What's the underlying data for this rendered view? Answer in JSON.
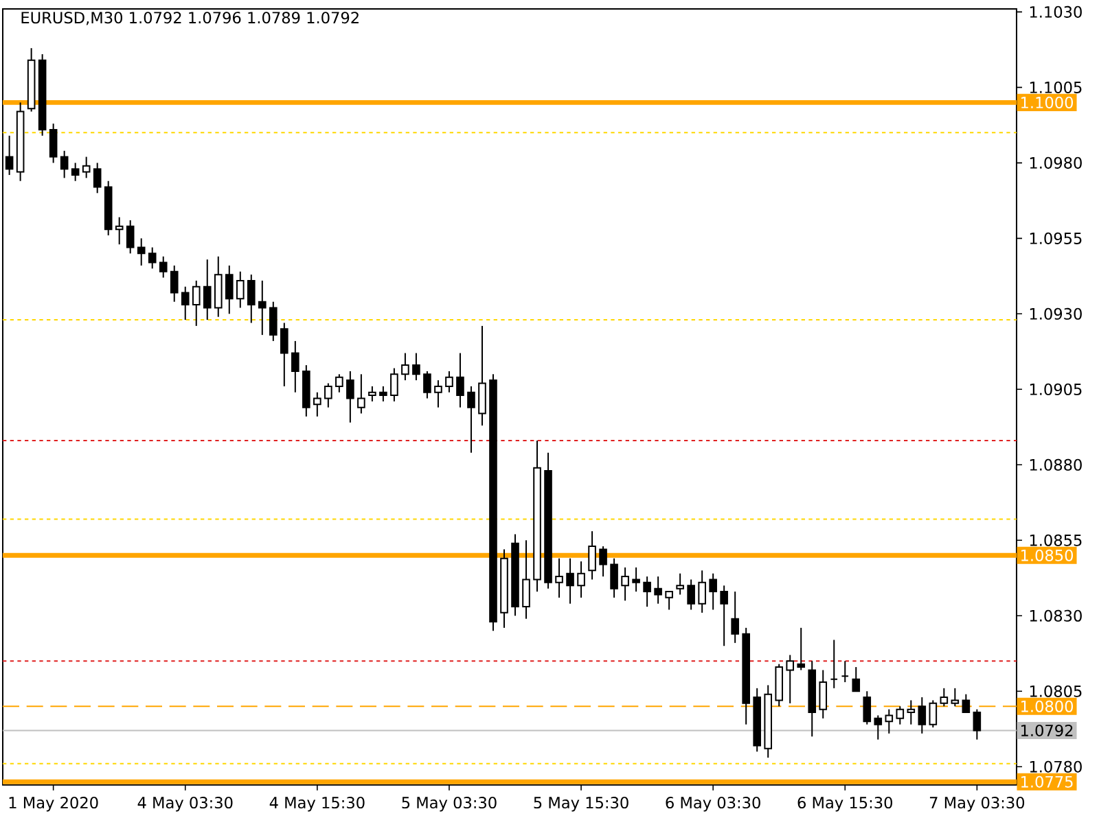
{
  "chart_data": {
    "type": "candlestick",
    "title": "EURUSD,M30  1.0792 1.0796 1.0789 1.0792",
    "categories": [
      null,
      null,
      null,
      null,
      "1 May 2020",
      null,
      null,
      null,
      null,
      null,
      null,
      null,
      null,
      null,
      null,
      null,
      "4 May 03:30",
      null,
      null,
      null,
      null,
      null,
      null,
      null,
      null,
      null,
      null,
      null,
      "4 May 15:30",
      null,
      null,
      null,
      null,
      null,
      null,
      null,
      null,
      null,
      null,
      null,
      "5 May 03:30",
      null,
      null,
      null,
      null,
      null,
      null,
      null,
      null,
      null,
      null,
      null,
      "5 May 15:30",
      null,
      null,
      null,
      null,
      null,
      null,
      null,
      null,
      null,
      null,
      null,
      "6 May 03:30",
      null,
      null,
      null,
      null,
      null,
      null,
      null,
      null,
      null,
      null,
      null,
      "6 May 15:30",
      null,
      null,
      null,
      null,
      null,
      null,
      null,
      null,
      null,
      null,
      null,
      "7 May 03:30"
    ],
    "ohlc": [
      [
        1.0982,
        1.0989,
        1.0976,
        1.0978
      ],
      [
        1.0977,
        1.1,
        1.0974,
        1.0997
      ],
      [
        1.0998,
        1.1018,
        1.0997,
        1.1014
      ],
      [
        1.1014,
        1.1016,
        1.0989,
        1.0991
      ],
      [
        1.0991,
        1.0993,
        1.098,
        1.0982
      ],
      [
        1.0982,
        1.0984,
        1.0975,
        1.0978
      ],
      [
        1.0978,
        1.098,
        1.0974,
        1.0976
      ],
      [
        1.0977,
        1.0982,
        1.0975,
        1.0979
      ],
      [
        1.0978,
        1.098,
        1.097,
        1.0972
      ],
      [
        1.0972,
        1.0974,
        1.0956,
        1.0958
      ],
      [
        1.0958,
        1.0962,
        1.0953,
        1.0959
      ],
      [
        1.0959,
        1.0961,
        1.095,
        1.0952
      ],
      [
        1.0952,
        1.0955,
        1.0946,
        1.095
      ],
      [
        1.095,
        1.0952,
        1.0945,
        1.0947
      ],
      [
        1.0947,
        1.0949,
        1.0942,
        1.0944
      ],
      [
        1.0944,
        1.0946,
        1.0934,
        1.0937
      ],
      [
        1.0937,
        1.0939,
        1.0928,
        1.0933
      ],
      [
        1.0933,
        1.0941,
        1.0926,
        1.0939
      ],
      [
        1.0939,
        1.0948,
        1.0928,
        1.0932
      ],
      [
        1.0932,
        1.0949,
        1.0929,
        1.0943
      ],
      [
        1.0943,
        1.0946,
        1.093,
        1.0935
      ],
      [
        1.0935,
        1.0944,
        1.0932,
        1.0941
      ],
      [
        1.0941,
        1.0943,
        1.0927,
        1.0933
      ],
      [
        1.0934,
        1.0941,
        1.0923,
        1.0932
      ],
      [
        1.0932,
        1.0934,
        1.0921,
        1.0923
      ],
      [
        1.0925,
        1.0927,
        1.0906,
        1.0917
      ],
      [
        1.0917,
        1.0921,
        1.0904,
        1.0911
      ],
      [
        1.0911,
        1.0913,
        1.0896,
        1.0899
      ],
      [
        1.09,
        1.0904,
        1.0896,
        1.0902
      ],
      [
        1.0902,
        1.0907,
        1.0899,
        1.0906
      ],
      [
        1.0906,
        1.091,
        1.0904,
        1.0909
      ],
      [
        1.0908,
        1.0911,
        1.0894,
        1.0902
      ],
      [
        1.0899,
        1.091,
        1.0897,
        1.0902
      ],
      [
        1.0903,
        1.0906,
        1.0901,
        1.0904
      ],
      [
        1.0904,
        1.0906,
        1.0901,
        1.0903
      ],
      [
        1.0903,
        1.0912,
        1.0901,
        1.091
      ],
      [
        1.091,
        1.0917,
        1.0908,
        1.0913
      ],
      [
        1.0913,
        1.0917,
        1.0908,
        1.091
      ],
      [
        1.091,
        1.0911,
        1.0902,
        1.0904
      ],
      [
        1.0904,
        1.0908,
        1.0899,
        1.0906
      ],
      [
        1.0906,
        1.0911,
        1.0904,
        1.0909
      ],
      [
        1.0909,
        1.0917,
        1.0899,
        1.0903
      ],
      [
        1.0904,
        1.0906,
        1.0884,
        1.0899
      ],
      [
        1.0897,
        1.0926,
        1.0893,
        1.0907
      ],
      [
        1.0908,
        1.091,
        1.0825,
        1.0828
      ],
      [
        1.0831,
        1.0852,
        1.0826,
        1.0849
      ],
      [
        1.0854,
        1.0857,
        1.083,
        1.0833
      ],
      [
        1.0833,
        1.0855,
        1.0829,
        1.0842
      ],
      [
        1.0842,
        1.0888,
        1.0838,
        1.0879
      ],
      [
        1.0878,
        1.0884,
        1.0839,
        1.0841
      ],
      [
        1.0841,
        1.0849,
        1.0836,
        1.0843
      ],
      [
        1.0844,
        1.0849,
        1.0834,
        1.084
      ],
      [
        1.084,
        1.0848,
        1.0836,
        1.0844
      ],
      [
        1.0845,
        1.0858,
        1.0842,
        1.0853
      ],
      [
        1.0852,
        1.0853,
        1.0843,
        1.0847
      ],
      [
        1.0847,
        1.0849,
        1.0836,
        1.0839
      ],
      [
        1.084,
        1.0846,
        1.0835,
        1.0843
      ],
      [
        1.0842,
        1.0846,
        1.0838,
        1.0841
      ],
      [
        1.0841,
        1.0843,
        1.0833,
        1.0838
      ],
      [
        1.0839,
        1.0843,
        1.0834,
        1.0837
      ],
      [
        1.0836,
        1.0838,
        1.0832,
        1.0838
      ],
      [
        1.0839,
        1.0844,
        1.0837,
        1.084
      ],
      [
        1.084,
        1.0842,
        1.0832,
        1.0834
      ],
      [
        1.0834,
        1.0845,
        1.0831,
        1.0841
      ],
      [
        1.0842,
        1.0844,
        1.0832,
        1.0838
      ],
      [
        1.0838,
        1.084,
        1.082,
        1.0834
      ],
      [
        1.0829,
        1.0838,
        1.0821,
        1.0824
      ],
      [
        1.0824,
        1.0826,
        1.0794,
        1.0801
      ],
      [
        1.0803,
        1.0806,
        1.0785,
        1.0787
      ],
      [
        1.0786,
        1.0807,
        1.0783,
        1.0804
      ],
      [
        1.0802,
        1.0814,
        1.08,
        1.0813
      ],
      [
        1.0812,
        1.0817,
        1.0801,
        1.0815
      ],
      [
        1.0814,
        1.0826,
        1.0812,
        1.0813
      ],
      [
        1.0812,
        1.0815,
        1.079,
        1.0798
      ],
      [
        1.0799,
        1.0812,
        1.0796,
        1.0808
      ],
      [
        1.0809,
        1.0822,
        1.0806,
        1.0809
      ],
      [
        1.081,
        1.0815,
        1.0808,
        1.081
      ],
      [
        1.0809,
        1.0813,
        1.0805,
        1.0805
      ],
      [
        1.0803,
        1.0805,
        1.0794,
        1.0795
      ],
      [
        1.0796,
        1.0797,
        1.0789,
        1.0794
      ],
      [
        1.0795,
        1.0799,
        1.0791,
        1.0797
      ],
      [
        1.0796,
        1.08,
        1.0794,
        1.0799
      ],
      [
        1.0798,
        1.0802,
        1.0794,
        1.0799
      ],
      [
        1.08,
        1.0803,
        1.0791,
        1.0794
      ],
      [
        1.0794,
        1.0802,
        1.0793,
        1.0801
      ],
      [
        1.0801,
        1.0806,
        1.08,
        1.0803
      ],
      [
        1.0801,
        1.0806,
        1.08,
        1.0802
      ],
      [
        1.0802,
        1.0804,
        1.0798,
        1.0798
      ],
      [
        1.0798,
        1.0799,
        1.0789,
        1.0792
      ]
    ],
    "ylim": [
      1.0774,
      1.1031
    ],
    "yticks": [
      {
        "value": 1.103,
        "label": "1.1030"
      },
      {
        "value": 1.1005,
        "label": "1.1005"
      },
      {
        "value": 1.098,
        "label": "1.0980"
      },
      {
        "value": 1.0955,
        "label": "1.0955"
      },
      {
        "value": 1.093,
        "label": "1.0930"
      },
      {
        "value": 1.0905,
        "label": "1.0905"
      },
      {
        "value": 1.088,
        "label": "1.0880"
      },
      {
        "value": 1.0855,
        "label": "1.0855"
      },
      {
        "value": 1.083,
        "label": "1.0830"
      },
      {
        "value": 1.0805,
        "label": "1.0805"
      },
      {
        "value": 1.078,
        "label": "1.0780"
      }
    ],
    "ref_lines": [
      {
        "axis": "y",
        "value": 1.1,
        "label": "1.1000",
        "color": "#ffa500",
        "line_style": "solid"
      },
      {
        "axis": "y",
        "value": 1.085,
        "label": "1.0850",
        "color": "#ffa500",
        "line_style": "solid"
      },
      {
        "axis": "y",
        "value": 1.0775,
        "label": "1.0775",
        "color": "#ffa500",
        "line_style": "solid"
      },
      {
        "axis": "y",
        "value": 1.08,
        "label": "1.0800",
        "color": "#ffa500",
        "line_style": "dashed"
      },
      {
        "axis": "y",
        "value": 1.0792,
        "label": "1.0792",
        "color": "#c0c0c0",
        "line_style": "solid"
      },
      {
        "axis": "y",
        "value": 1.099,
        "color": "#ffd700",
        "line_style": "dotted"
      },
      {
        "axis": "y",
        "value": 1.0928,
        "color": "#ffd700",
        "line_style": "dotted"
      },
      {
        "axis": "y",
        "value": 1.0888,
        "color": "#e02020",
        "line_style": "dotted"
      },
      {
        "axis": "y",
        "value": 1.0862,
        "color": "#ffd700",
        "line_style": "dotted"
      },
      {
        "axis": "y",
        "value": 1.0815,
        "color": "#e02020",
        "line_style": "dotted"
      },
      {
        "axis": "y",
        "value": 1.0781,
        "color": "#ffd700",
        "line_style": "dotted"
      }
    ]
  }
}
